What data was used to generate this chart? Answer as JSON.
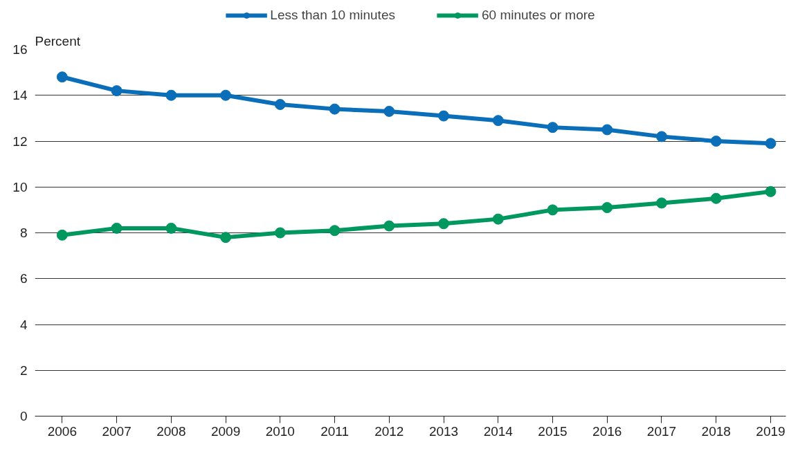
{
  "chart_data": {
    "type": "line",
    "ylabel": "Percent",
    "categories": [
      "2006",
      "2007",
      "2008",
      "2009",
      "2010",
      "2011",
      "2012",
      "2013",
      "2014",
      "2015",
      "2016",
      "2017",
      "2018",
      "2019"
    ],
    "series": [
      {
        "name": "Less than 10 minutes",
        "color": "#0a6fb8",
        "values": [
          14.8,
          14.2,
          14.0,
          14.0,
          13.6,
          13.4,
          13.3,
          13.1,
          12.9,
          12.6,
          12.5,
          12.2,
          12.0,
          11.9
        ]
      },
      {
        "name": "60 minutes or more",
        "color": "#00985f",
        "values": [
          7.9,
          8.2,
          8.2,
          7.8,
          8.0,
          8.1,
          8.3,
          8.4,
          8.6,
          9.0,
          9.1,
          9.3,
          9.5,
          9.8
        ]
      }
    ],
    "ylim": [
      0,
      16
    ],
    "yticks": [
      0,
      2,
      4,
      6,
      8,
      10,
      12,
      14,
      16
    ],
    "grid": "y",
    "legend": "top",
    "marker": "circle",
    "line_style": "solid"
  }
}
